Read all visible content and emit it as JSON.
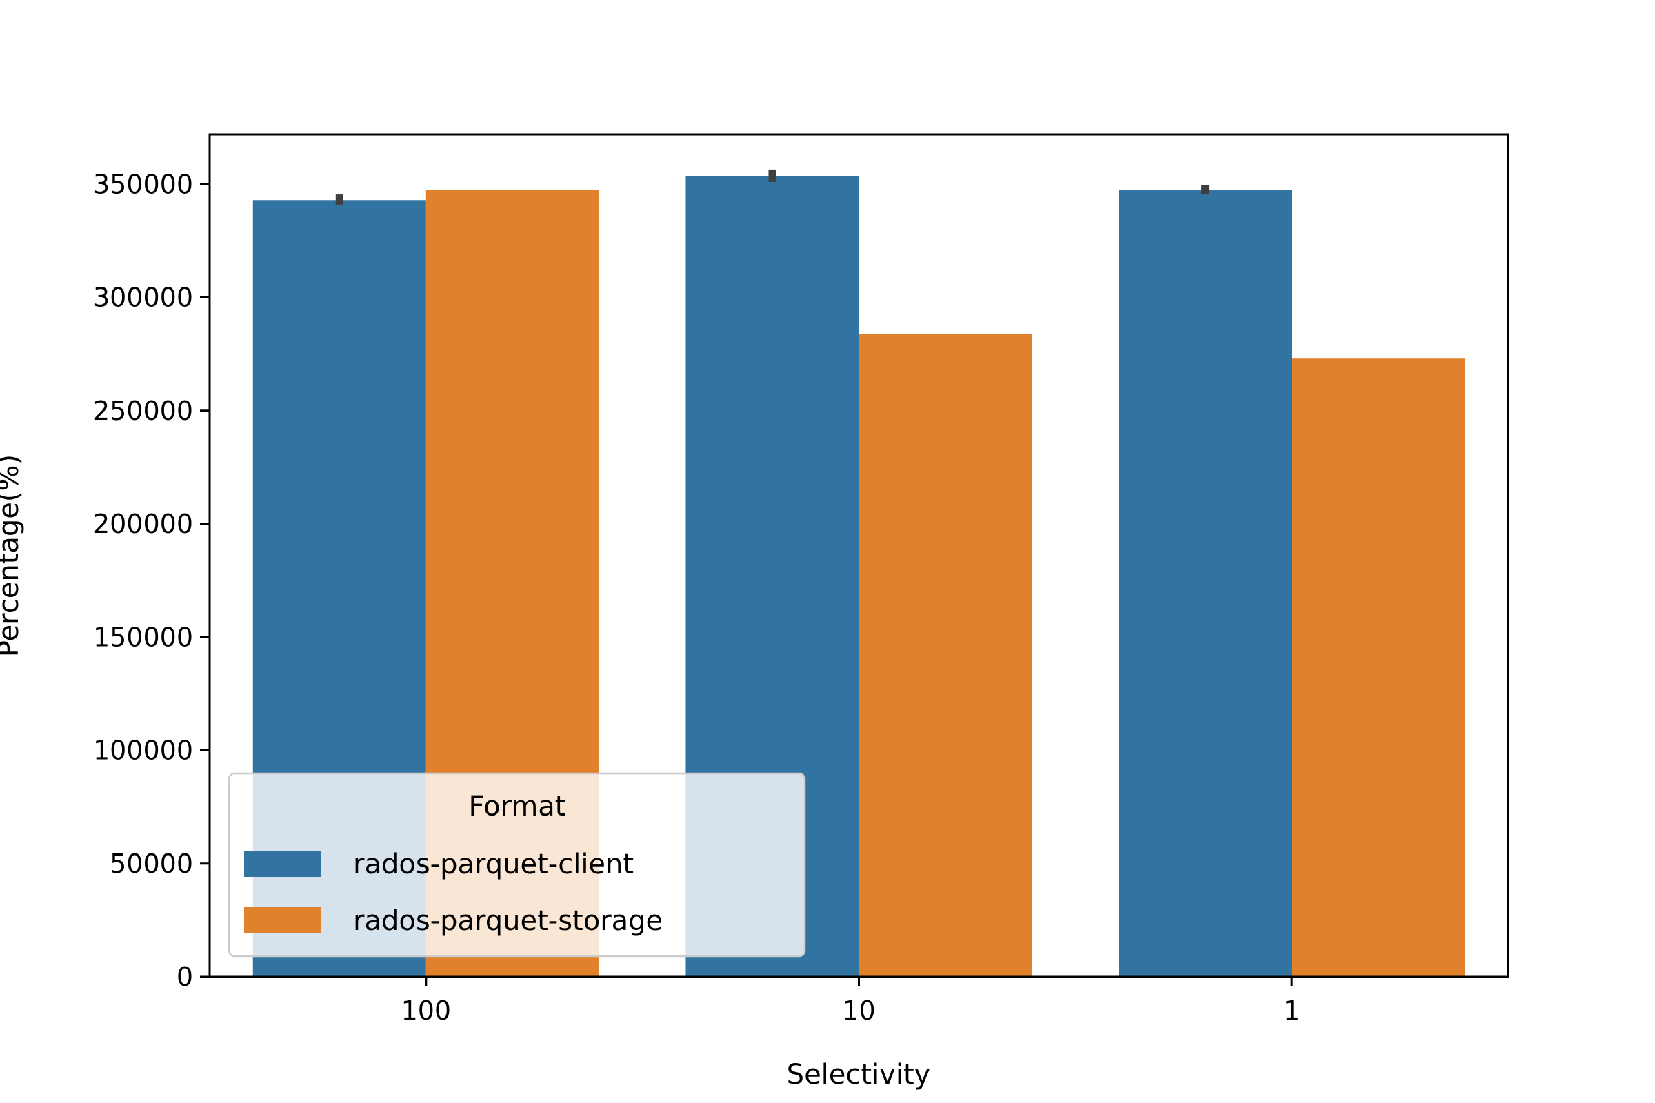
{
  "chart_data": {
    "type": "bar",
    "xlabel": "Selectivity",
    "ylabel": "Percentage(%)",
    "categories": [
      "100",
      "10",
      "1"
    ],
    "ylim": [
      0,
      372000
    ],
    "yticks": [
      0,
      50000,
      100000,
      150000,
      200000,
      250000,
      300000,
      350000
    ],
    "ytick_labels": [
      "0",
      "50000",
      "100000",
      "150000",
      "200000",
      "250000",
      "300000",
      "350000"
    ],
    "grid": false,
    "legend": {
      "title": "Format",
      "placement": "lower-left"
    },
    "series": [
      {
        "name": "rados-parquet-client",
        "color": "#3274a1",
        "values": [
          343000,
          353500,
          347500
        ],
        "error_low": [
          341000,
          351000,
          345500
        ],
        "error_high": [
          345500,
          356500,
          349500
        ]
      },
      {
        "name": "rados-parquet-storage",
        "color": "#e1812c",
        "values": [
          347500,
          284000,
          273000
        ]
      }
    ],
    "errorbar_color": "#3f3f3f"
  }
}
